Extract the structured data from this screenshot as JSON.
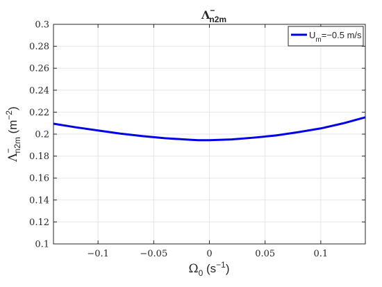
{
  "chart_data": {
    "type": "line",
    "title": {
      "base": "Λ",
      "sup": "−",
      "sub": "n2m"
    },
    "xlabel": {
      "base": "Ω",
      "sub": "0",
      "unit_pre": " (s",
      "unit_sup": "−1",
      "unit_post": ")"
    },
    "ylabel": {
      "base": "Λ",
      "sup": "−",
      "sub": "n2m",
      "unit_pre": " (m",
      "unit_sup": "−2",
      "unit_post": ")"
    },
    "xlim": [
      -0.14,
      0.14
    ],
    "ylim": [
      0.1,
      0.3
    ],
    "x_ticks": [
      -0.1,
      -0.05,
      0,
      0.05,
      0.1
    ],
    "x_tick_labels": [
      "−0.1",
      "−0.05",
      "0",
      "0.05",
      "0.1"
    ],
    "y_ticks": [
      0.1,
      0.12,
      0.14,
      0.16,
      0.18,
      0.2,
      0.22,
      0.24,
      0.26,
      0.28,
      0.3
    ],
    "y_tick_labels": [
      "0.1",
      "0.12",
      "0.14",
      "0.16",
      "0.18",
      "0.2",
      "0.22",
      "0.24",
      "0.26",
      "0.28",
      "0.3"
    ],
    "grid": true,
    "legend_position": "top-right",
    "series": [
      {
        "legend": {
          "base": "U",
          "sub": "m",
          "rest": "=−0.5 m/s"
        },
        "color": "#0000e6",
        "x": [
          -0.14,
          -0.12,
          -0.1,
          -0.08,
          -0.06,
          -0.04,
          -0.02,
          -0.01,
          0,
          0.02,
          0.04,
          0.06,
          0.08,
          0.1,
          0.12,
          0.14
        ],
        "y": [
          0.2095,
          0.2062,
          0.2033,
          0.2005,
          0.1982,
          0.1963,
          0.195,
          0.1945,
          0.1945,
          0.1952,
          0.1968,
          0.1988,
          0.2018,
          0.2052,
          0.2098,
          0.2153
        ]
      }
    ]
  }
}
